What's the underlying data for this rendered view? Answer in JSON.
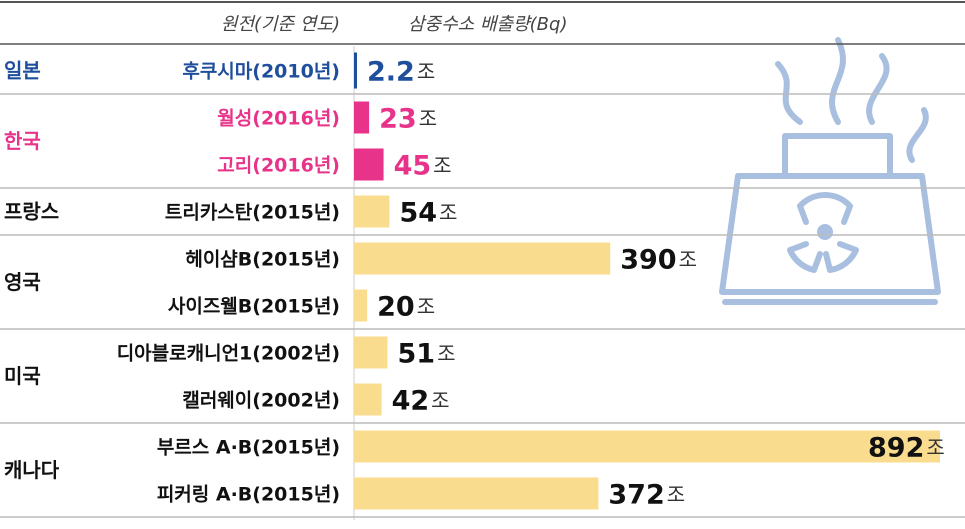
{
  "chart_data": {
    "type": "bar",
    "orientation": "horizontal",
    "header": {
      "plant": "원전(기준 연도)",
      "value": "삼중수소 배출량(Bq)"
    },
    "unit": "조",
    "colors": {
      "japan": "#1e4e9c",
      "korea": "#e8338a",
      "other": "#fadc8e",
      "value_text": "#111111",
      "grid": "#bbbbbb",
      "icon": "#a9bfdf"
    },
    "groups": [
      {
        "country": "일본",
        "color_key": "japan",
        "items": [
          {
            "plant": "후쿠시마(2010년)",
            "value": 2.2,
            "label": "2.2"
          }
        ]
      },
      {
        "country": "한국",
        "color_key": "korea",
        "items": [
          {
            "plant": "월성(2016년)",
            "value": 23,
            "label": "23"
          },
          {
            "plant": "고리(2016년)",
            "value": 45,
            "label": "45"
          }
        ]
      },
      {
        "country": "프랑스",
        "color_key": "other",
        "items": [
          {
            "plant": "트리카스탄(2015년)",
            "value": 54,
            "label": "54"
          }
        ]
      },
      {
        "country": "영국",
        "color_key": "other",
        "items": [
          {
            "plant": "헤이샴B(2015년)",
            "value": 390,
            "label": "390"
          },
          {
            "plant": "사이즈웰B(2015년)",
            "value": 20,
            "label": "20"
          }
        ]
      },
      {
        "country": "미국",
        "color_key": "other",
        "items": [
          {
            "plant": "디아블로캐니언1(2002년)",
            "value": 51,
            "label": "51"
          },
          {
            "plant": "캘러웨이(2002년)",
            "value": 42,
            "label": "42"
          }
        ]
      },
      {
        "country": "캐나다",
        "color_key": "other",
        "items": [
          {
            "plant": "부르스 A·B(2015년)",
            "value": 892,
            "label": "892"
          },
          {
            "plant": "피커링 A·B(2015년)",
            "value": 372,
            "label": "372"
          }
        ]
      }
    ],
    "xlim": [
      0,
      892
    ],
    "icon": "nuclear-plant-icon"
  }
}
